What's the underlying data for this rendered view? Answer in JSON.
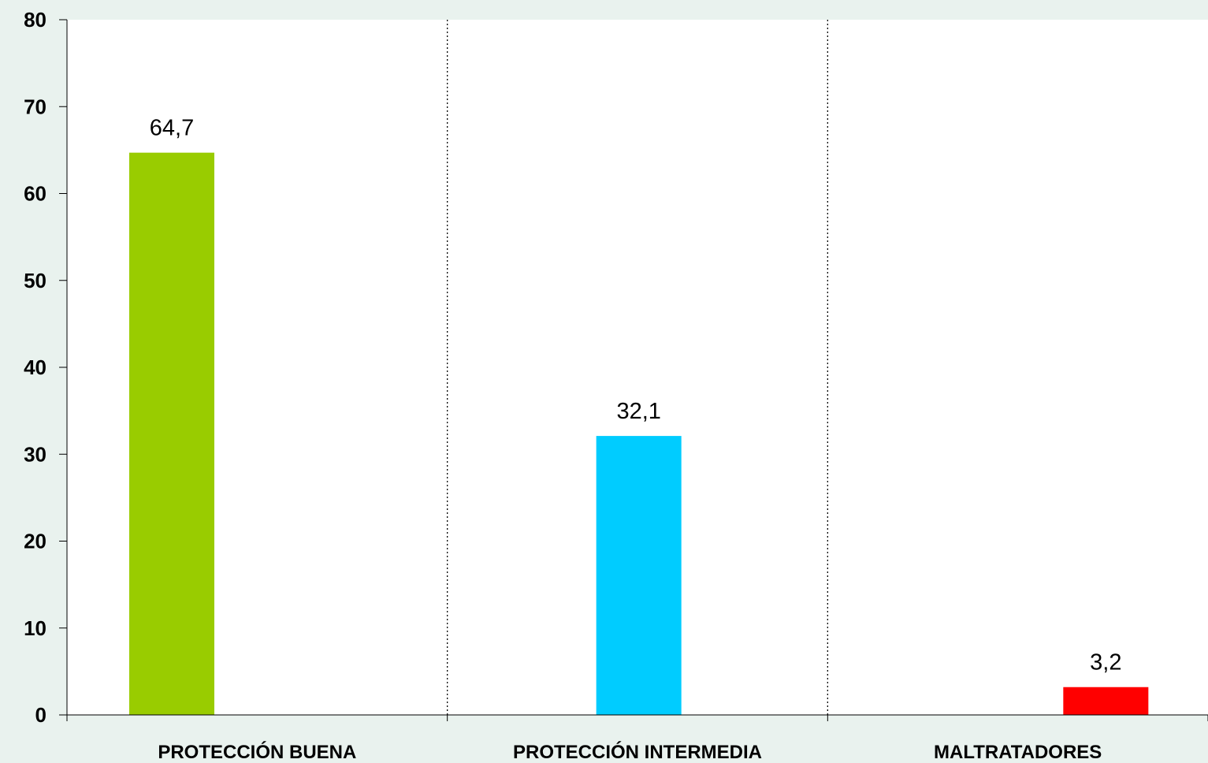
{
  "chart_data": {
    "type": "bar",
    "categories": [
      "PROTECCIÓN BUENA",
      "PROTECCIÓN INTERMEDIA",
      "MALTRATADORES"
    ],
    "values": [
      64.7,
      32.1,
      3.2
    ],
    "data_labels": [
      "64,7",
      "32,1",
      "3,2"
    ],
    "colors": [
      "#99cc00",
      "#00ccff",
      "#ff0000"
    ],
    "bar_position": [
      "left",
      "center",
      "right"
    ],
    "ylim": [
      0,
      80
    ],
    "yticks": [
      0,
      10,
      20,
      30,
      40,
      50,
      60,
      70,
      80
    ],
    "ytick_labels": [
      "0",
      "10",
      "20",
      "30",
      "40",
      "50",
      "60",
      "70",
      "80"
    ],
    "category_separators": "dotted",
    "grid": false,
    "plot_background": "#ffffff",
    "page_background": "#e9f2ee"
  }
}
